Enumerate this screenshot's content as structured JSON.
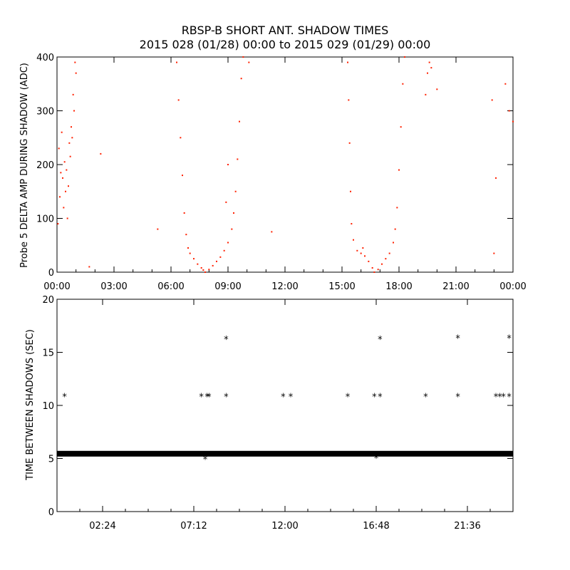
{
  "title_line1": "RBSP-B SHORT ANT. SHADOW TIMES",
  "title_line2": "2015 028 (01/28) 00:00 to 2015 029 (01/29) 00:00",
  "chart_data": [
    {
      "type": "scatter",
      "ylabel": "Probe 5 DELTA AMP DURING SHADOW (ADC)",
      "xlim_hours": [
        0,
        24
      ],
      "ylim": [
        0,
        400
      ],
      "x_ticks": [
        "00:00",
        "03:00",
        "06:00",
        "09:00",
        "12:00",
        "15:00",
        "18:00",
        "21:00",
        "00:00"
      ],
      "y_ticks": [
        "0",
        "100",
        "200",
        "300",
        "400"
      ],
      "color": "#ff2000",
      "series": [
        {
          "points": [
            [
              0.1,
              230
            ],
            [
              0.2,
              185
            ],
            [
              0.3,
              175
            ],
            [
              0.4,
              205
            ],
            [
              0.5,
              190
            ],
            [
              0.6,
              160
            ],
            [
              0.7,
              215
            ],
            [
              0.8,
              250
            ],
            [
              0.9,
              300
            ],
            [
              1.0,
              370
            ],
            [
              0.15,
              140
            ],
            [
              0.35,
              120
            ],
            [
              0.55,
              100
            ],
            [
              0.65,
              240
            ],
            [
              0.75,
              270
            ],
            [
              0.85,
              330
            ],
            [
              0.95,
              390
            ],
            [
              0.05,
              90
            ],
            [
              0.25,
              260
            ],
            [
              0.45,
              150
            ],
            [
              1.7,
              10
            ],
            [
              2.3,
              220
            ],
            [
              5.3,
              80
            ],
            [
              10.1,
              390
            ],
            [
              11.3,
              75
            ],
            [
              23.0,
              35
            ],
            [
              23.1,
              175
            ],
            [
              23.6,
              350
            ],
            [
              23.8,
              300
            ],
            [
              24.0,
              280
            ],
            [
              22.9,
              320
            ]
          ]
        },
        {
          "points": [
            [
              6.3,
              390
            ],
            [
              6.4,
              320
            ],
            [
              6.5,
              250
            ],
            [
              6.6,
              180
            ],
            [
              6.7,
              110
            ],
            [
              6.8,
              70
            ],
            [
              6.9,
              45
            ],
            [
              7.0,
              35
            ],
            [
              7.2,
              25
            ],
            [
              7.4,
              15
            ],
            [
              7.6,
              8
            ],
            [
              7.7,
              4
            ],
            [
              7.8,
              0
            ],
            [
              8.0,
              5
            ],
            [
              8.2,
              12
            ],
            [
              8.4,
              20
            ],
            [
              8.6,
              28
            ],
            [
              8.8,
              40
            ],
            [
              9.0,
              55
            ],
            [
              9.2,
              80
            ],
            [
              9.3,
              110
            ],
            [
              9.4,
              150
            ],
            [
              9.5,
              210
            ],
            [
              9.6,
              280
            ],
            [
              9.7,
              360
            ],
            [
              9.8,
              400
            ],
            [
              8.9,
              130
            ],
            [
              9.0,
              200
            ]
          ]
        },
        {
          "points": [
            [
              15.3,
              390
            ],
            [
              15.35,
              320
            ],
            [
              15.4,
              240
            ],
            [
              15.45,
              150
            ],
            [
              15.5,
              90
            ],
            [
              15.6,
              60
            ],
            [
              15.8,
              40
            ],
            [
              16.0,
              35
            ],
            [
              16.1,
              45
            ],
            [
              16.2,
              30
            ],
            [
              16.4,
              20
            ],
            [
              16.6,
              8
            ],
            [
              16.7,
              0
            ],
            [
              16.9,
              5
            ],
            [
              17.1,
              15
            ],
            [
              17.3,
              25
            ],
            [
              17.5,
              35
            ],
            [
              17.7,
              55
            ],
            [
              17.8,
              80
            ],
            [
              17.9,
              120
            ],
            [
              18.0,
              190
            ],
            [
              18.1,
              270
            ],
            [
              18.2,
              350
            ],
            [
              18.3,
              400
            ],
            [
              19.4,
              330
            ],
            [
              19.5,
              370
            ],
            [
              19.6,
              390
            ],
            [
              19.7,
              380
            ],
            [
              20.0,
              340
            ]
          ]
        }
      ]
    },
    {
      "type": "scatter",
      "ylabel": "TIME BETWEEN SHADOWS (SEC)",
      "xlim_hours": [
        0,
        24
      ],
      "ylim": [
        0,
        20
      ],
      "x_ticks": [
        "02:24",
        "07:12",
        "12:00",
        "16:48",
        "21:36"
      ],
      "x_tick_hours": [
        2.4,
        7.2,
        12.0,
        16.8,
        21.6
      ],
      "y_ticks": [
        "0",
        "5",
        "10",
        "15",
        "20"
      ],
      "baseline": {
        "y": 5.45,
        "x_start": 0,
        "x_end": 24
      },
      "series": [
        {
          "points": [
            [
              0.4,
              10.9
            ],
            [
              7.6,
              10.9
            ],
            [
              7.9,
              10.9
            ],
            [
              8.0,
              10.9
            ],
            [
              8.9,
              16.3
            ],
            [
              8.9,
              10.9
            ],
            [
              11.9,
              10.9
            ],
            [
              12.3,
              10.9
            ],
            [
              15.3,
              10.9
            ],
            [
              16.7,
              10.9
            ],
            [
              17.0,
              16.3
            ],
            [
              17.0,
              10.9
            ],
            [
              19.4,
              10.9
            ],
            [
              21.1,
              16.4
            ],
            [
              21.1,
              10.9
            ],
            [
              23.1,
              10.9
            ],
            [
              23.3,
              10.9
            ],
            [
              23.5,
              10.9
            ],
            [
              23.8,
              16.4
            ],
            [
              23.8,
              10.9
            ],
            [
              7.8,
              5.0
            ],
            [
              16.8,
              5.1
            ]
          ]
        }
      ]
    }
  ]
}
